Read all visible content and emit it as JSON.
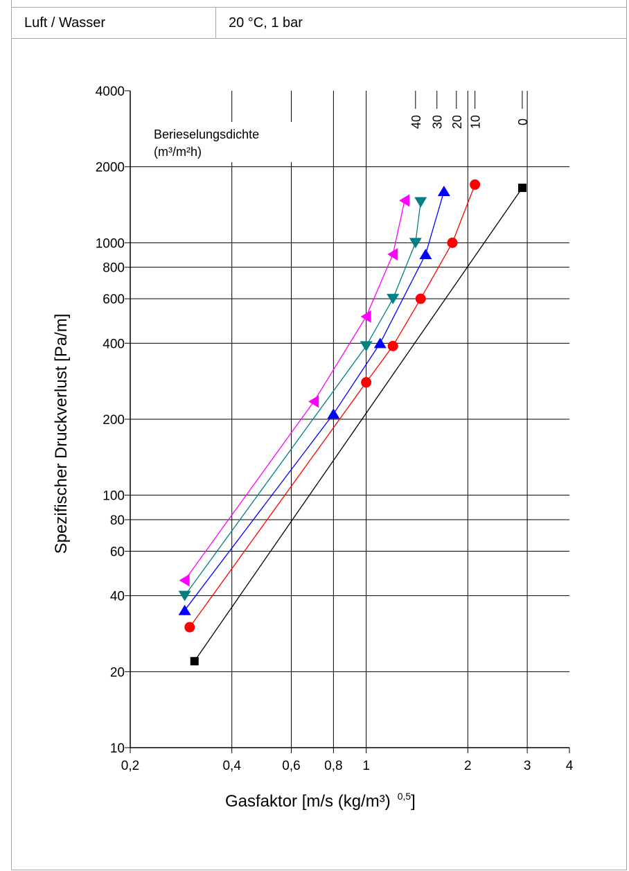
{
  "header": {
    "medium": "Luft / Wasser",
    "conditions": "20 °C, 1 bar"
  },
  "chart_data": {
    "type": "line",
    "title": "",
    "xlabel": "Gasfaktor [m/s (kg/m³) ^0,5]",
    "xlabel_main": "Gasfaktor [m/s (kg/m³)",
    "xlabel_exp": "0,5",
    "xlabel_close": "]",
    "ylabel": "Spezifischer Druckverlust [Pa/m]",
    "x_scale": "log",
    "y_scale": "log",
    "xlim": [
      0.2,
      4
    ],
    "ylim": [
      10,
      4000
    ],
    "grid": true,
    "xticks": [
      {
        "v": 0.2,
        "label": "0,2"
      },
      {
        "v": 0.4,
        "label": "0,4"
      },
      {
        "v": 0.6,
        "label": "0,6"
      },
      {
        "v": 0.8,
        "label": "0,8"
      },
      {
        "v": 1,
        "label": "1"
      },
      {
        "v": 2,
        "label": "2"
      },
      {
        "v": 3,
        "label": "3"
      },
      {
        "v": 4,
        "label": "4"
      }
    ],
    "yticks": [
      {
        "v": 10,
        "label": "10"
      },
      {
        "v": 20,
        "label": "20"
      },
      {
        "v": 40,
        "label": "40"
      },
      {
        "v": 60,
        "label": "60"
      },
      {
        "v": 80,
        "label": "80"
      },
      {
        "v": 100,
        "label": "100"
      },
      {
        "v": 200,
        "label": "200"
      },
      {
        "v": 400,
        "label": "400"
      },
      {
        "v": 600,
        "label": "600"
      },
      {
        "v": 800,
        "label": "800"
      },
      {
        "v": 1000,
        "label": "1000"
      },
      {
        "v": 2000,
        "label": "2000"
      },
      {
        "v": 4000,
        "label": "4000"
      }
    ],
    "legend_title_line1": "Berieselungsdichte",
    "legend_title_line2": "(m³/m²h)",
    "series": [
      {
        "name": "0",
        "color": "#000000",
        "marker": "square",
        "points": [
          [
            0.31,
            22
          ],
          [
            2.9,
            1650
          ]
        ]
      },
      {
        "name": "10",
        "color": "#ff0000",
        "marker": "circle",
        "points": [
          [
            0.3,
            30
          ],
          [
            1.0,
            280
          ],
          [
            1.2,
            390
          ],
          [
            1.45,
            600
          ],
          [
            1.8,
            1000
          ],
          [
            2.1,
            1700
          ]
        ]
      },
      {
        "name": "20",
        "color": "#0000ff",
        "marker": "triangle-up",
        "points": [
          [
            0.29,
            35
          ],
          [
            0.8,
            210
          ],
          [
            1.1,
            400
          ],
          [
            1.5,
            900
          ],
          [
            1.7,
            1600
          ]
        ]
      },
      {
        "name": "30",
        "color": "#008080",
        "marker": "triangle-down",
        "points": [
          [
            0.29,
            40
          ],
          [
            1.0,
            390
          ],
          [
            1.2,
            600
          ],
          [
            1.4,
            1000
          ],
          [
            1.45,
            1450
          ]
        ]
      },
      {
        "name": "40",
        "color": "#ff00ff",
        "marker": "triangle-left",
        "points": [
          [
            0.29,
            46
          ],
          [
            0.7,
            235
          ],
          [
            1.0,
            510
          ],
          [
            1.2,
            900
          ],
          [
            1.3,
            1470
          ]
        ]
      }
    ],
    "series_label_anchor_x": [
      2.9,
      2.1,
      1.85,
      1.62,
      1.4
    ]
  }
}
